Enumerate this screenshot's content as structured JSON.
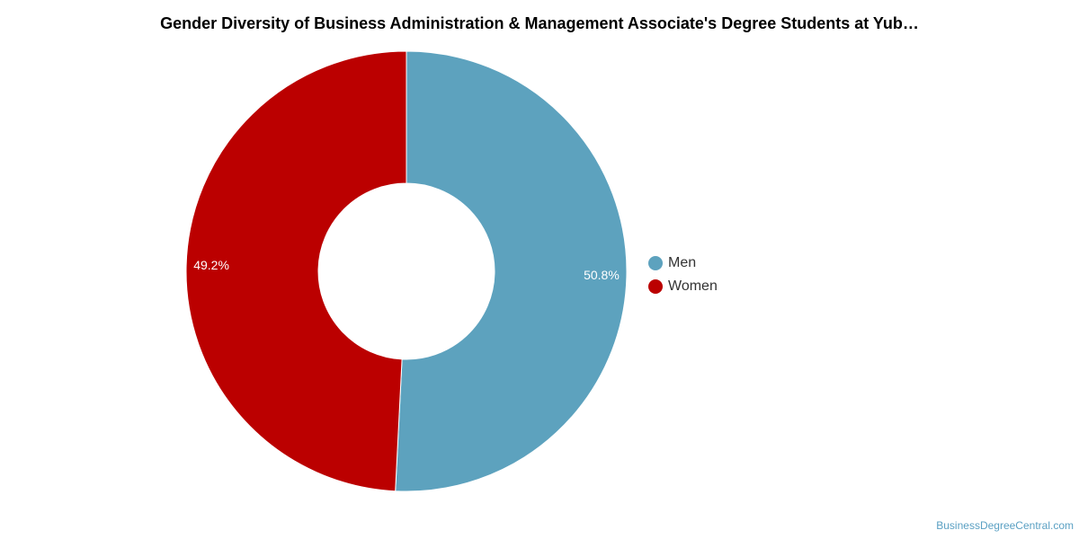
{
  "chart_data": {
    "type": "pie",
    "variant": "donut",
    "title": "Gender Diversity of Business Administration & Management Associate's Degree Students at Yub…",
    "categories": [
      "Men",
      "Women"
    ],
    "values": [
      50.8,
      49.2
    ],
    "value_labels": [
      "50.8%",
      "49.2%"
    ],
    "colors": [
      "#5da2be",
      "#bb0000"
    ],
    "legend": "right"
  },
  "credit": "BusinessDegreeCentral.com"
}
